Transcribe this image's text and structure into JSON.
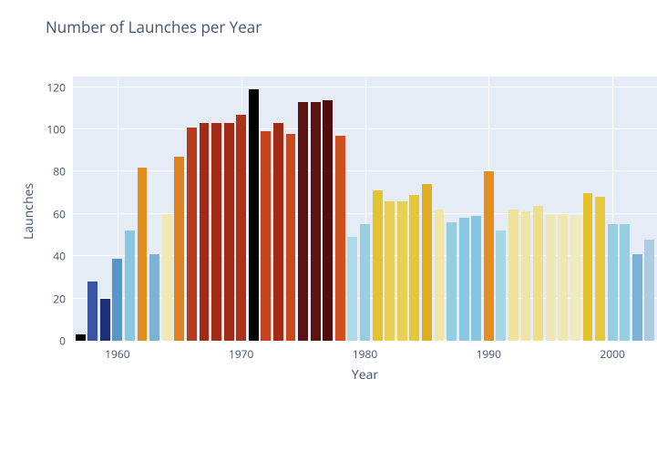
{
  "chart": {
    "type": "bar",
    "title": "Number of Launches per Year",
    "title_fontsize": 17,
    "title_color": "#42536e",
    "xlabel": "Year",
    "ylabel": "Launches",
    "label_fontsize": 14,
    "label_color": "#42536e",
    "tick_fontsize": 12,
    "tick_color": "#42536e",
    "background_color": "#e5ecf5",
    "grid_color": "#ffffff",
    "ylim": [
      0,
      125
    ],
    "ytick_step": 20,
    "xticks": [
      1960,
      1970,
      1980,
      1990,
      2000
    ],
    "x_start": 1956.4,
    "x_end": 2003.6,
    "bar_width": 0.8,
    "years": [
      1957,
      1958,
      1959,
      1960,
      1961,
      1962,
      1963,
      1964,
      1965,
      1966,
      1967,
      1968,
      1969,
      1970,
      1971,
      1972,
      1973,
      1974,
      1975,
      1976,
      1977,
      1978,
      1979,
      1980,
      1981,
      1982,
      1983,
      1984,
      1985,
      1986,
      1987,
      1988,
      1989,
      1990,
      1991,
      1992,
      1993,
      1994,
      1995,
      1996,
      1997,
      1998,
      1999,
      2000,
      2001,
      2002,
      2003
    ],
    "values": [
      3,
      28,
      20,
      39,
      52,
      82,
      41,
      60,
      87,
      101,
      103,
      103,
      103,
      107,
      119,
      99,
      103,
      98,
      113,
      113,
      114,
      97,
      49,
      55,
      71,
      66,
      66,
      69,
      74,
      62,
      56,
      58,
      59,
      80,
      52,
      62,
      61,
      64,
      60,
      60,
      59,
      70,
      68,
      55,
      55,
      41,
      48
    ],
    "colors": [
      "#000000",
      "#3b53a3",
      "#1e2f7a",
      "#5697c8",
      "#89c7e2",
      "#e18e1e",
      "#7eb2d5",
      "#efe8b4",
      "#de8221",
      "#b63a1c",
      "#a22b18",
      "#a22b18",
      "#a22b18",
      "#ae3219",
      "#000000",
      "#c4451b",
      "#a22b18",
      "#c8491c",
      "#5e1111",
      "#5e1111",
      "#4f0d0e",
      "#cd501d",
      "#aedae7",
      "#98cee2",
      "#e5c330",
      "#e9cf56",
      "#e9cf56",
      "#e6c737",
      "#e0ae22",
      "#efe5a5",
      "#96cde1",
      "#8ac7e2",
      "#86c5e1",
      "#e28f1e",
      "#a6d5e5",
      "#eee39c",
      "#efe5a5",
      "#eedf86",
      "#efe8b4",
      "#efe8b4",
      "#efeabf",
      "#e5c12b",
      "#e6c93e",
      "#98cee2",
      "#98cee2",
      "#7eb2d5",
      "#accde0"
    ]
  }
}
